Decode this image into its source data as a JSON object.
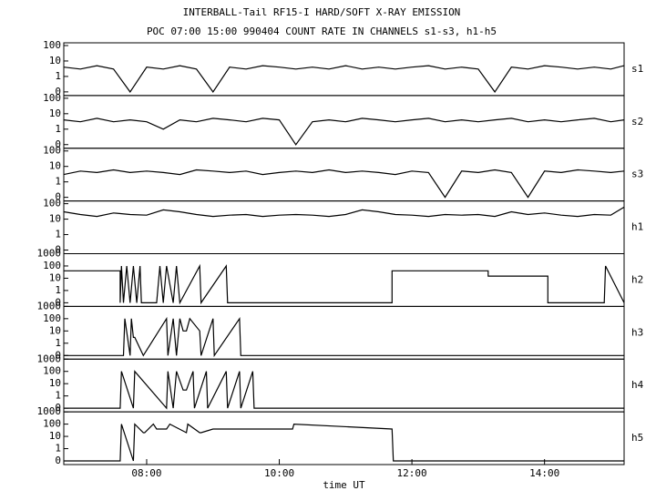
{
  "chart_data": [
    {
      "type": "line",
      "title": "INTERBALL-Tail RF15-I HARD/SOFT X-RAY EMISSION",
      "subtitle": "POC 07:00 15:00 990404  COUNT RATE IN CHANNELS s1-s3, h1-h5",
      "yscale": "symlog",
      "ylim": [
        0,
        150
      ],
      "yticks": [
        0,
        1,
        10,
        100
      ],
      "xlim": [
        6.75,
        15.2
      ],
      "x": [
        6.75,
        7,
        7.25,
        7.5,
        7.75,
        8,
        8.25,
        8.5,
        8.75,
        9,
        9.25,
        9.5,
        9.75,
        10,
        10.25,
        10.5,
        10.75,
        11,
        11.25,
        11.5,
        11.75,
        12,
        12.25,
        12.5,
        12.75,
        13,
        13.25,
        13.5,
        13.75,
        14,
        14.25,
        14.5,
        14.75,
        15,
        15.2
      ],
      "series": [
        {
          "name": "s1",
          "color": "#000000",
          "values": [
            4,
            3,
            5,
            3,
            0,
            4,
            3,
            5,
            3,
            0,
            4,
            3,
            5,
            4,
            3,
            4,
            3,
            5,
            3,
            4,
            3,
            4,
            5,
            3,
            4,
            3,
            0,
            4,
            3,
            5,
            4,
            3,
            4,
            3,
            5
          ]
        }
      ]
    },
    {
      "type": "line",
      "yscale": "symlog",
      "ylim": [
        0,
        150
      ],
      "yticks": [
        0,
        1,
        10,
        100
      ],
      "xlim": [
        6.75,
        15.2
      ],
      "x": [
        6.75,
        7,
        7.25,
        7.5,
        7.75,
        8,
        8.25,
        8.5,
        8.75,
        9,
        9.25,
        9.5,
        9.75,
        10,
        10.25,
        10.5,
        10.75,
        11,
        11.25,
        11.5,
        11.75,
        12,
        12.25,
        12.5,
        12.75,
        13,
        13.25,
        13.5,
        13.75,
        14,
        14.25,
        14.5,
        14.75,
        15,
        15.2
      ],
      "series": [
        {
          "name": "s2",
          "color": "#000000",
          "values": [
            4,
            3,
            5,
            3,
            4,
            3,
            1,
            4,
            3,
            5,
            4,
            3,
            5,
            4,
            0,
            3,
            4,
            3,
            5,
            4,
            3,
            4,
            5,
            3,
            4,
            3,
            4,
            5,
            3,
            4,
            3,
            4,
            5,
            3,
            4
          ]
        }
      ]
    },
    {
      "type": "line",
      "yscale": "symlog",
      "ylim": [
        0,
        150
      ],
      "yticks": [
        0,
        1,
        10,
        100
      ],
      "xlim": [
        6.75,
        15.2
      ],
      "x": [
        6.75,
        7,
        7.25,
        7.5,
        7.75,
        8,
        8.25,
        8.5,
        8.75,
        9,
        9.25,
        9.5,
        9.75,
        10,
        10.25,
        10.5,
        10.75,
        11,
        11.25,
        11.5,
        11.75,
        12,
        12.25,
        12.5,
        12.75,
        13,
        13.25,
        13.5,
        13.75,
        14,
        14.25,
        14.5,
        14.75,
        15,
        15.2
      ],
      "series": [
        {
          "name": "s3",
          "color": "#000000",
          "values": [
            3,
            5,
            4,
            6,
            4,
            5,
            4,
            3,
            6,
            5,
            4,
            5,
            3,
            4,
            5,
            4,
            6,
            4,
            5,
            4,
            3,
            5,
            4,
            0,
            5,
            4,
            6,
            4,
            0,
            5,
            4,
            6,
            5,
            4,
            5
          ]
        }
      ]
    },
    {
      "type": "line",
      "yscale": "symlog",
      "ylim": [
        0,
        150
      ],
      "yticks": [
        0,
        1,
        10,
        100
      ],
      "xlim": [
        6.75,
        15.2
      ],
      "x": [
        6.75,
        7,
        7.25,
        7.5,
        7.75,
        8,
        8.25,
        8.5,
        8.75,
        9,
        9.25,
        9.5,
        9.75,
        10,
        10.25,
        10.5,
        10.75,
        11,
        11.25,
        11.5,
        11.75,
        12,
        12.25,
        12.5,
        12.75,
        13,
        13.25,
        13.5,
        13.75,
        14,
        14.25,
        14.5,
        14.75,
        15,
        15.2
      ],
      "series": [
        {
          "name": "h1",
          "color": "#000000",
          "values": [
            30,
            20,
            15,
            25,
            20,
            18,
            40,
            30,
            20,
            15,
            18,
            20,
            15,
            18,
            20,
            18,
            15,
            20,
            40,
            30,
            20,
            18,
            15,
            20,
            18,
            20,
            15,
            30,
            20,
            25,
            18,
            15,
            20,
            18,
            60
          ]
        }
      ]
    },
    {
      "type": "line",
      "yscale": "symlog",
      "ylim": [
        0,
        1000
      ],
      "yticks": [
        0,
        1,
        10,
        100,
        1000
      ],
      "xlim": [
        6.75,
        15.2
      ],
      "x": [
        6.75,
        7.6,
        7.6,
        7.62,
        7.65,
        7.7,
        7.75,
        7.8,
        7.85,
        7.9,
        7.92,
        8.15,
        8.2,
        8.25,
        8.3,
        8.4,
        8.45,
        8.5,
        8.8,
        8.82,
        9.2,
        9.22,
        11.7,
        11.7,
        13.15,
        13.15,
        14.05,
        14.05,
        14.9,
        14.92,
        15.2
      ],
      "series": [
        {
          "name": "h2",
          "color": "#000000",
          "values": [
            40,
            40,
            0,
            100,
            0,
            100,
            0,
            100,
            0,
            100,
            0,
            0,
            100,
            0,
            100,
            0,
            100,
            0,
            100,
            0,
            100,
            0,
            0,
            40,
            40,
            15,
            15,
            0,
            0,
            100,
            0
          ]
        }
      ]
    },
    {
      "type": "line",
      "yscale": "symlog",
      "ylim": [
        0,
        1000
      ],
      "yticks": [
        0,
        1,
        10,
        100,
        1000
      ],
      "xlim": [
        6.75,
        15.2
      ],
      "x": [
        6.75,
        7.65,
        7.67,
        7.75,
        7.77,
        7.8,
        7.82,
        7.95,
        8.3,
        8.32,
        8.4,
        8.45,
        8.5,
        8.55,
        8.6,
        8.65,
        8.8,
        8.82,
        9.0,
        9.02,
        9.4,
        9.42,
        15.2
      ],
      "series": [
        {
          "name": "h3",
          "color": "#000000",
          "values": [
            0,
            0,
            100,
            0,
            100,
            3,
            3,
            0,
            100,
            0,
            100,
            0,
            100,
            10,
            10,
            100,
            10,
            0,
            100,
            0,
            100,
            0,
            0
          ]
        }
      ]
    },
    {
      "type": "line",
      "yscale": "symlog",
      "ylim": [
        0,
        1000
      ],
      "yticks": [
        0,
        1,
        10,
        100,
        1000
      ],
      "xlim": [
        6.75,
        15.2
      ],
      "x": [
        6.75,
        7.6,
        7.62,
        7.8,
        7.82,
        8.3,
        8.32,
        8.4,
        8.45,
        8.55,
        8.6,
        8.7,
        8.72,
        8.9,
        8.92,
        9.2,
        9.22,
        9.4,
        9.42,
        9.6,
        9.62,
        15.2
      ],
      "series": [
        {
          "name": "h4",
          "color": "#000000",
          "values": [
            0,
            0,
            100,
            0,
            100,
            0,
            100,
            0,
            100,
            3,
            3,
            100,
            0,
            100,
            0,
            100,
            0,
            100,
            0,
            100,
            0,
            0
          ]
        }
      ]
    },
    {
      "type": "line",
      "yscale": "symlog",
      "ylim": [
        0,
        1000
      ],
      "yticks": [
        0,
        1,
        10,
        100,
        1000
      ],
      "xlim": [
        6.75,
        15.2
      ],
      "xlabel": "time UT",
      "xticks": [
        {
          "value": 8,
          "label": "08:00"
        },
        {
          "value": 10,
          "label": "10:00"
        },
        {
          "value": 12,
          "label": "12:00"
        },
        {
          "value": 14,
          "label": "14:00"
        }
      ],
      "x": [
        6.75,
        7.6,
        7.62,
        7.8,
        7.82,
        7.95,
        7.97,
        8.1,
        8.15,
        8.3,
        8.35,
        8.6,
        8.62,
        8.8,
        8.82,
        9.0,
        9.02,
        9.2,
        9.22,
        10.2,
        10.22,
        11.7,
        11.72,
        15.2
      ],
      "series": [
        {
          "name": "h5",
          "color": "#000000",
          "values": [
            0,
            0,
            100,
            0,
            100,
            20,
            20,
            100,
            40,
            40,
            100,
            20,
            100,
            20,
            20,
            40,
            40,
            40,
            40,
            40,
            100,
            40,
            0,
            0
          ]
        }
      ]
    }
  ]
}
